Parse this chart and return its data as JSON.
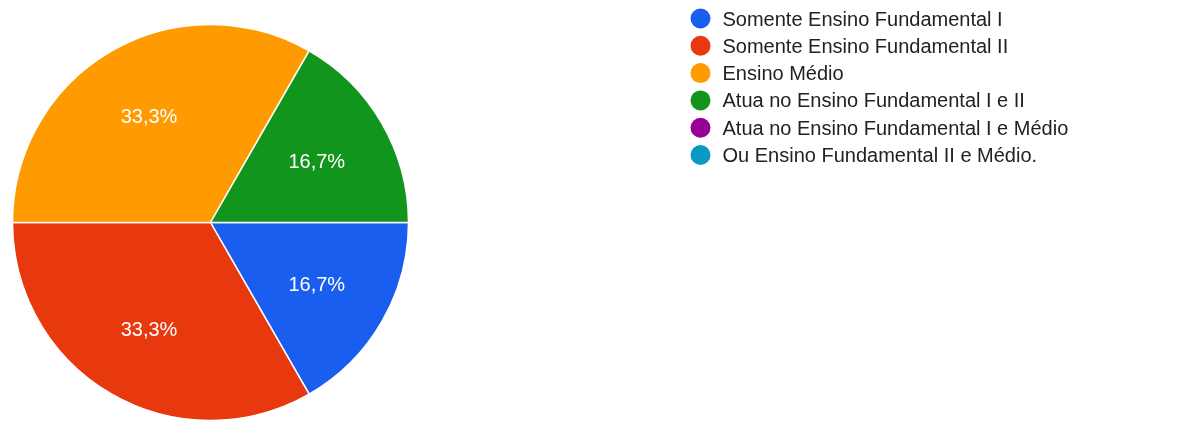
{
  "chart_data": {
    "type": "pie",
    "categories": [
      "Somente Ensino Fundamental I",
      "Somente Ensino Fundamental II",
      "Ensino Médio",
      "Atua no Ensino Fundamental I e II",
      "Atua no Ensino Fundamental I e Médio",
      "Ou Ensino Fundamental II e Médio."
    ],
    "values": [
      16.7,
      33.3,
      33.3,
      16.7,
      0,
      0
    ],
    "value_labels": [
      "16,7%",
      "33,3%",
      "33,3%",
      "16,7%",
      null,
      null
    ],
    "colors": [
      "#1a5ef0",
      "#e8380d",
      "#ff9a00",
      "#12951c",
      "#990099",
      "#0a99c6"
    ],
    "legend": "right"
  }
}
